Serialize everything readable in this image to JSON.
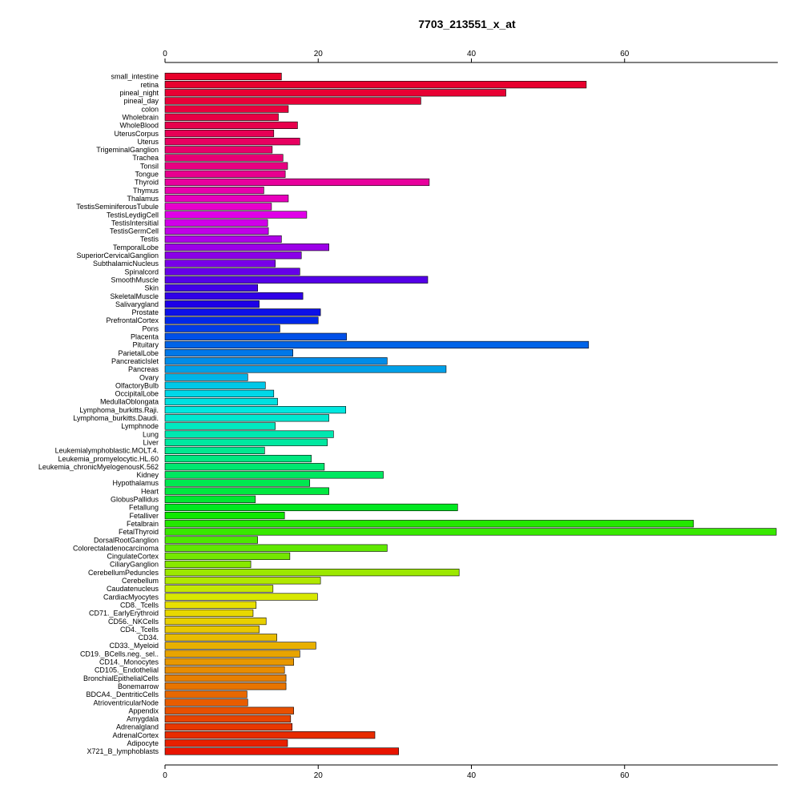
{
  "chart_data": {
    "type": "bar",
    "orientation": "horizontal",
    "title": "7703_213551_x_at",
    "xlabel": "",
    "ylabel": "",
    "xlim": [
      0,
      80
    ],
    "ticks": [
      0,
      20,
      40,
      60
    ],
    "tick_labels": [
      "0",
      "20",
      "40",
      "60"
    ],
    "grid": false,
    "legend": "none",
    "categories": [
      "small_intestine",
      "retina",
      "pineal_night",
      "pineal_day",
      "colon",
      "Wholebrain",
      "WholeBlood",
      "UterusCorpus",
      "Uterus",
      "TrigeminalGanglion",
      "Trachea",
      "Tonsil",
      "Tongue",
      "Thyroid",
      "Thymus",
      "Thalamus",
      "TestisSeminiferousTubule",
      "TestisLeydigCell",
      "TestisIntersitial",
      "TestisGermCell",
      "Testis",
      "TemporalLobe",
      "SuperiorCervicalGanglion",
      "SubthalamicNucleus",
      "Spinalcord",
      "SmoothMuscle",
      "Skin",
      "SkeletalMuscle",
      "Salivarygland",
      "Prostate",
      "PrefrontalCortex",
      "Pons",
      "Placenta",
      "Pituitary",
      "ParietalLobe",
      "PancreaticIslet",
      "Pancreas",
      "Ovary",
      "OlfactoryBulb",
      "OccipitalLobe",
      "MedullaOblongata",
      "Lymphoma_burkitts.Raji.",
      "Lymphoma_burkitts.Daudi.",
      "Lymphnode",
      "Lung",
      "Liver",
      "Leukemialymphoblastic.MOLT.4.",
      "Leukemia_promyelocytic.HL.60",
      "Leukemia_chronicMyelogenousK.562",
      "Kidney",
      "Hypothalamus",
      "Heart",
      "GlobusPallidus",
      "Fetallung",
      "Fetalliver",
      "Fetalbrain",
      "FetalThyroid",
      "DorsalRootGanglion",
      "Colorectaladenocarcinoma",
      "CingulateCortex",
      "CiliaryGanglion",
      "CerebellumPeduncles",
      "Cerebellum",
      "Caudatenucleus",
      "CardiacMyocytes",
      "CD8._Tcells",
      "CD71._EarlyErythroid",
      "CD56._NKCells",
      "CD4._Tcells",
      "CD34.",
      "CD33._Myeloid",
      "CD19._BCells.neg._sel..",
      "CD14._Monocytes",
      "CD105._Endothelial",
      "BronchialEpithelialCells",
      "Bonemarrow",
      "BDCA4._DentriticCells",
      "AtrioventricularNode",
      "Appendix",
      "Amygdala",
      "Adrenalgland",
      "AdrenalCortex",
      "Adipocyte",
      "X721_B_lymphoblasts"
    ],
    "values": [
      15.2,
      55.0,
      44.5,
      33.4,
      16.1,
      14.8,
      17.3,
      14.2,
      17.6,
      14.0,
      15.4,
      16.0,
      15.7,
      34.5,
      12.9,
      16.1,
      13.9,
      18.5,
      13.4,
      13.5,
      15.2,
      21.4,
      17.8,
      14.4,
      17.6,
      34.3,
      12.1,
      18.0,
      12.3,
      20.3,
      20.0,
      15.0,
      23.7,
      55.3,
      16.7,
      29.0,
      36.7,
      10.8,
      13.1,
      14.2,
      14.7,
      23.6,
      21.4,
      14.4,
      22.0,
      21.2,
      13.0,
      19.1,
      20.8,
      28.5,
      18.9,
      21.4,
      11.8,
      38.2,
      15.6,
      69.0,
      79.8,
      12.1,
      29.0,
      16.3,
      11.2,
      38.4,
      20.3,
      14.1,
      19.9,
      11.9,
      11.5,
      13.2,
      12.3,
      14.6,
      19.7,
      17.6,
      16.8,
      15.6,
      15.8,
      15.8,
      10.7,
      10.8,
      16.8,
      16.4,
      16.6,
      27.4,
      16.0,
      30.5
    ],
    "colors": [
      "#e8002a",
      "#e8002e",
      "#e80033",
      "#e80038",
      "#e8003e",
      "#e80045",
      "#e8004d",
      "#e80056",
      "#e80060",
      "#e8006a",
      "#e80075",
      "#e80082",
      "#e8008f",
      "#e8009d",
      "#e800ac",
      "#e800bc",
      "#e800cc",
      "#e000e8",
      "#d000e8",
      "#c000e8",
      "#ae00e8",
      "#9c00e8",
      "#8a00e8",
      "#7800e8",
      "#6600e8",
      "#5400e8",
      "#4200e8",
      "#3000e8",
      "#1e00e8",
      "#0c10e8",
      "#0028e8",
      "#003ce8",
      "#0050e8",
      "#0064e8",
      "#0078e8",
      "#008ce8",
      "#00a0e8",
      "#00b4e8",
      "#00c8e8",
      "#00d8e8",
      "#00e0e0",
      "#00e8e0",
      "#00e8d0",
      "#00e8c0",
      "#00e8b0",
      "#00e8a0",
      "#00e890",
      "#00e880",
      "#00e870",
      "#00e860",
      "#00e850",
      "#00e840",
      "#00e830",
      "#00e820",
      "#10e800",
      "#24e800",
      "#38e800",
      "#4ce800",
      "#60e800",
      "#74e800",
      "#88e800",
      "#9ce800",
      "#b0e800",
      "#c4e800",
      "#d8e800",
      "#e8e000",
      "#e8d800",
      "#e8d000",
      "#e8c800",
      "#e8bc00",
      "#e8b000",
      "#e8a400",
      "#e89800",
      "#e88c00",
      "#e88000",
      "#e87400",
      "#e86800",
      "#e85c00",
      "#e85000",
      "#e84400",
      "#e83800",
      "#e82c00",
      "#e82000",
      "#e81400"
    ]
  }
}
